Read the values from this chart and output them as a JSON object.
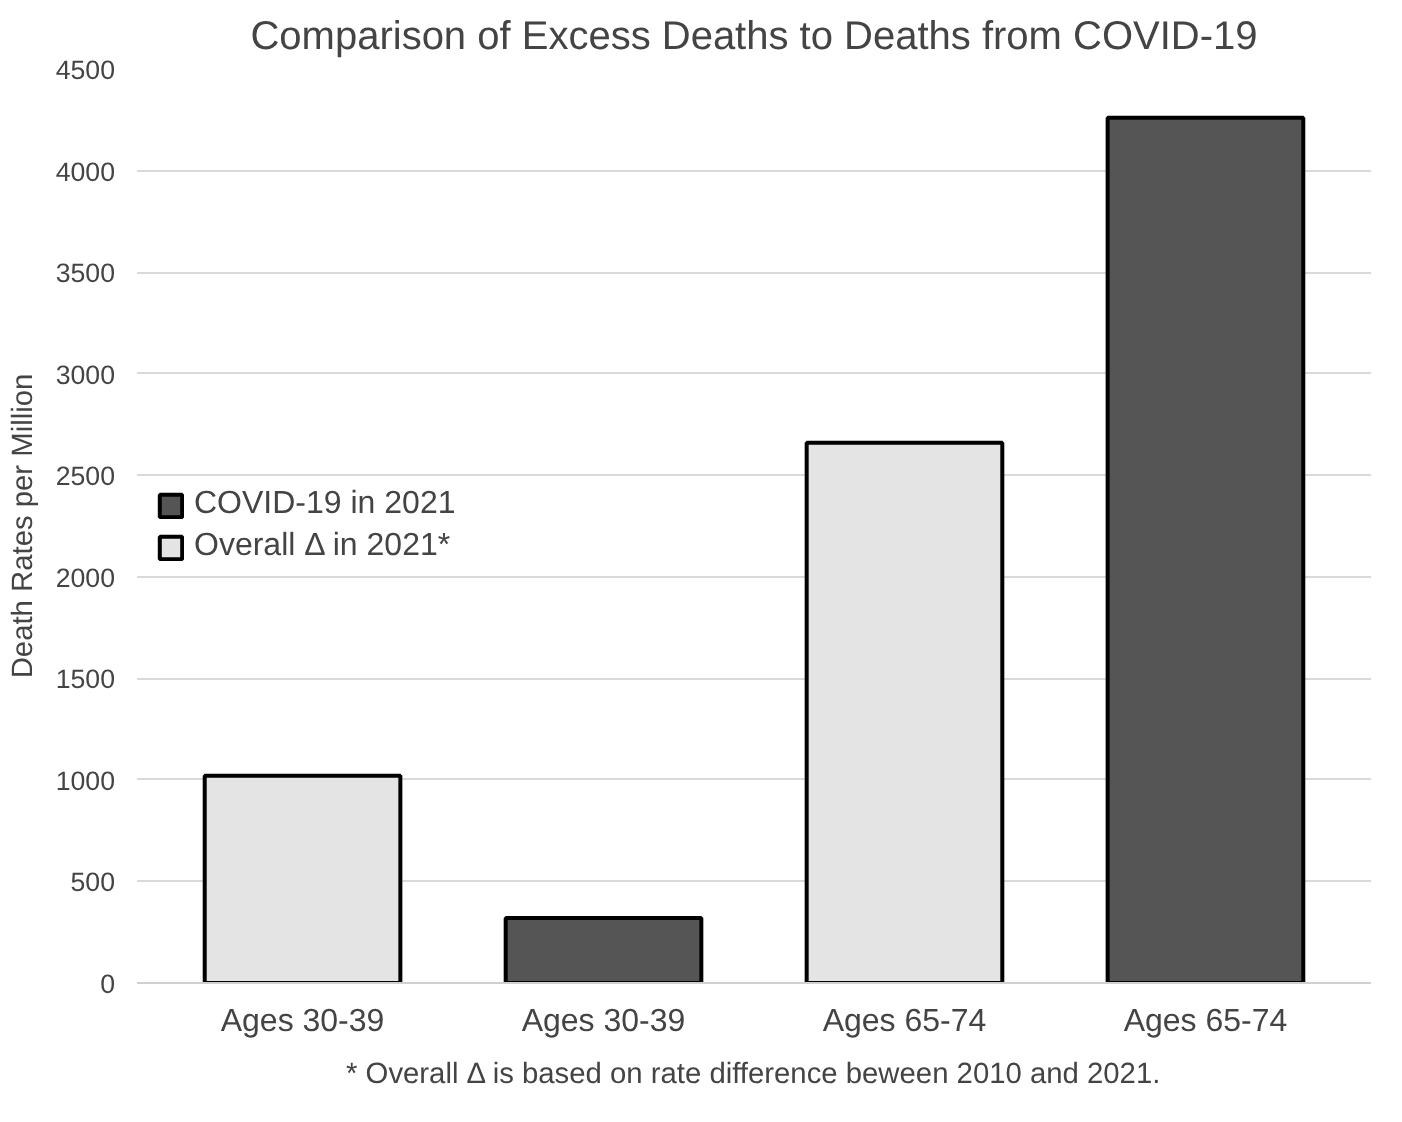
{
  "chart_data": {
    "type": "bar",
    "title": "Comparison of Excess Deaths to Deaths from COVID-19",
    "categories": [
      "Ages 30-39",
      "Ages 30-39",
      "Ages 65-74",
      "Ages 65-74"
    ],
    "series": [
      {
        "name": "COVID-19 in 2021",
        "color": "#555555",
        "values": [
          null,
          320,
          null,
          4260
        ]
      },
      {
        "name": "Overall Δ in 2021*",
        "color": "#e4e4e4",
        "values": [
          1020,
          null,
          2660,
          null
        ]
      }
    ],
    "ylabel": "Death Rates per Million",
    "ylim": [
      0,
      4500
    ],
    "yticks": [
      0,
      500,
      1000,
      1500,
      2000,
      2500,
      3000,
      3500,
      4000,
      4500
    ],
    "grid": "y",
    "legend": "left",
    "annotations": [
      "* Overall Δ is based on rate difference beween 2010 and 2021."
    ]
  }
}
